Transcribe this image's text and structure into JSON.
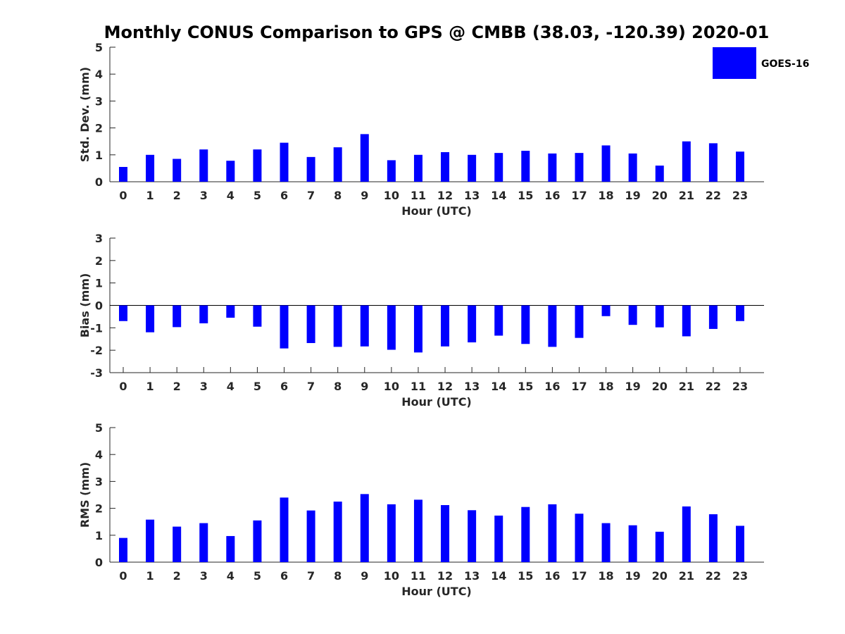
{
  "colors": {
    "bar": "#0000ff",
    "axis": "#262626",
    "background": "#ffffff"
  },
  "title": "Monthly CONUS Comparison to GPS @ CMBB (38.03, -120.39) 2020-01",
  "legend": {
    "label": "GOES-16",
    "placement": "top-right"
  },
  "chart_data": [
    {
      "type": "bar",
      "xlabel": "Hour (UTC)",
      "ylabel": "Std. Dev. (mm)",
      "categories": [
        "0",
        "1",
        "2",
        "3",
        "4",
        "5",
        "6",
        "7",
        "8",
        "9",
        "10",
        "11",
        "12",
        "13",
        "14",
        "15",
        "16",
        "17",
        "18",
        "19",
        "20",
        "21",
        "22",
        "23"
      ],
      "series": [
        {
          "name": "GOES-16",
          "values": [
            0.55,
            1.0,
            0.85,
            1.2,
            0.78,
            1.2,
            1.45,
            0.92,
            1.28,
            1.77,
            0.8,
            1.0,
            1.1,
            1.0,
            1.07,
            1.15,
            1.05,
            1.07,
            1.35,
            1.05,
            0.6,
            1.5,
            1.43,
            1.12
          ]
        }
      ],
      "ylim": [
        0,
        5
      ],
      "yticks": [
        0,
        1,
        2,
        3,
        4,
        5
      ],
      "grid": false
    },
    {
      "type": "bar",
      "xlabel": "Hour (UTC)",
      "ylabel": "Bias (mm)",
      "categories": [
        "0",
        "1",
        "2",
        "3",
        "4",
        "5",
        "6",
        "7",
        "8",
        "9",
        "10",
        "11",
        "12",
        "13",
        "14",
        "15",
        "16",
        "17",
        "18",
        "19",
        "20",
        "21",
        "22",
        "23"
      ],
      "series": [
        {
          "name": "GOES-16",
          "values": [
            -0.7,
            -1.2,
            -0.97,
            -0.8,
            -0.55,
            -0.95,
            -1.92,
            -1.68,
            -1.85,
            -1.83,
            -1.98,
            -2.1,
            -1.83,
            -1.65,
            -1.35,
            -1.72,
            -1.85,
            -1.45,
            -0.48,
            -0.87,
            -0.98,
            -1.38,
            -1.05,
            -0.7
          ]
        }
      ],
      "ylim": [
        -3,
        3
      ],
      "yticks": [
        -3,
        -2,
        -1,
        0,
        1,
        2,
        3
      ],
      "grid": false
    },
    {
      "type": "bar",
      "xlabel": "Hour (UTC)",
      "ylabel": "RMS (mm)",
      "categories": [
        "0",
        "1",
        "2",
        "3",
        "4",
        "5",
        "6",
        "7",
        "8",
        "9",
        "10",
        "11",
        "12",
        "13",
        "14",
        "15",
        "16",
        "17",
        "18",
        "19",
        "20",
        "21",
        "22",
        "23"
      ],
      "series": [
        {
          "name": "GOES-16",
          "values": [
            0.9,
            1.58,
            1.32,
            1.45,
            0.97,
            1.55,
            2.4,
            1.92,
            2.25,
            2.53,
            2.15,
            2.32,
            2.12,
            1.93,
            1.73,
            2.05,
            2.15,
            1.8,
            1.45,
            1.37,
            1.13,
            2.07,
            1.78,
            1.35
          ]
        }
      ],
      "ylim": [
        0,
        5
      ],
      "yticks": [
        0,
        1,
        2,
        3,
        4,
        5
      ],
      "grid": false
    }
  ]
}
